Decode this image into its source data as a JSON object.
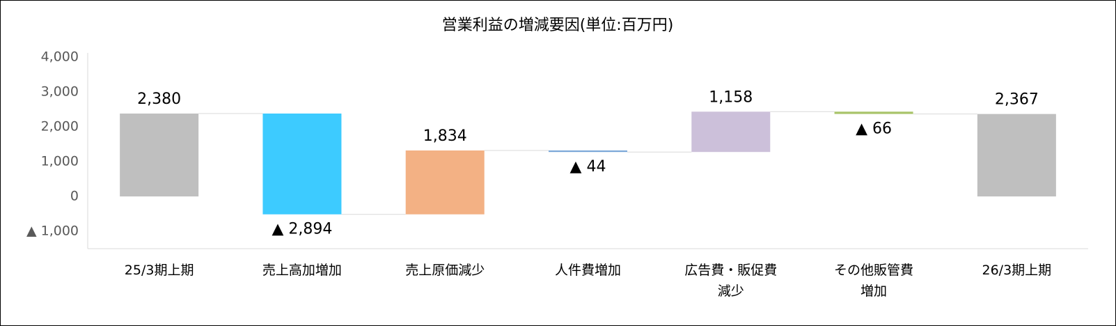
{
  "chart_data": {
    "type": "waterfall",
    "title": "営業利益の増減要因(単位:百万円)",
    "categories": [
      "25/3期上期",
      "売上高加増加",
      "売上原価減少",
      "人件費増加",
      "広告費・販促費\n減少",
      "その他販管費\n増加",
      "26/3期上期"
    ],
    "values": [
      2380,
      -2894,
      1834,
      -44,
      1158,
      -66,
      2367
    ],
    "value_labels": [
      "2,380",
      "▲ 2,894",
      "1,834",
      "▲ 44",
      "1,158",
      "▲ 66",
      "2,367"
    ],
    "is_total": [
      true,
      false,
      false,
      false,
      false,
      false,
      true
    ],
    "colors": [
      "#bfbfbf",
      "#3dcbff",
      "#f3b184",
      "#7aa7d8",
      "#ccc0da",
      "#a9c46a",
      "#bfbfbf"
    ],
    "ylim": [
      -1500,
      4000
    ],
    "yticks": [
      {
        "value": -1000,
        "label": "▲ 1,000"
      },
      0,
      {
        "value": 1000,
        "label": "1,000"
      },
      {
        "value": 2000,
        "label": "2,000"
      },
      {
        "value": 3000,
        "label": "3,000"
      },
      {
        "value": 4000,
        "label": "4,000"
      }
    ],
    "grid": false
  }
}
